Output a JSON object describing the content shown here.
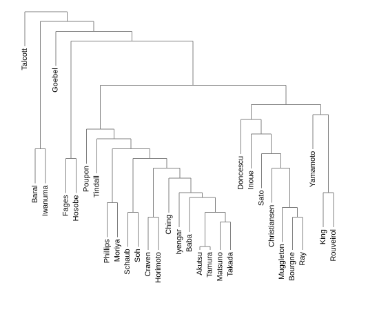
{
  "diagram": {
    "type": "dendrogram",
    "orientation": "top-down",
    "colors": {
      "link": "#7f7f7f",
      "label": "#000000",
      "background": "#ffffff"
    },
    "leaves": [
      "Talcott",
      "Baral",
      "Iwanuma",
      "Goebel",
      "Fages",
      "Hosobe",
      "Poupon",
      "Tindall",
      "Phillips",
      "Moriya",
      "Schaub",
      "Soh",
      "Craven",
      "Horimoto",
      "Ching",
      "Iyengar",
      "Baba",
      "Akutsu",
      "Tamura",
      "Matsuno",
      "Takada",
      "Doncescu",
      "Inoue",
      "Sato",
      "Christiansen",
      "Muggleton",
      "Bourgne",
      "Ray",
      "Yamamoto",
      "King",
      "Rouveirol"
    ],
    "merges": [
      [
        "Baral",
        "Iwanuma",
        0.2
      ],
      [
        "Fages",
        "Hosobe",
        0.18
      ],
      [
        "Phillips",
        "Moriya",
        0.09
      ],
      [
        "Schaub",
        "Soh",
        0.07
      ],
      [
        "Craven",
        "Horimoto",
        0.06
      ],
      [
        "Akutsu",
        "Tamura",
        0.0
      ],
      [
        "Matsuno",
        "Takada",
        0.05
      ],
      [
        "Bourgne",
        "Ray",
        0.06
      ],
      [
        "King",
        "Rouveirol",
        0.11
      ],
      [
        "m6",
        "m7",
        0.07
      ],
      [
        "Baba",
        "m10",
        0.1
      ],
      [
        "Iyengar",
        "m11",
        0.11
      ],
      [
        "Ching",
        "m12",
        0.14
      ],
      [
        "m5",
        "m13",
        0.16
      ],
      [
        "m4",
        "m14",
        0.18
      ],
      [
        "m3",
        "m15",
        0.2
      ],
      [
        "Tindall",
        "m16",
        0.22
      ],
      [
        "Poupon",
        "m17",
        0.24
      ],
      [
        "Muggleton",
        "m8",
        0.08
      ],
      [
        "Christiansen",
        "m19",
        0.16
      ],
      [
        "Sato",
        "m20",
        0.19
      ],
      [
        "Inoue",
        "m21",
        0.23
      ],
      [
        "Doncescu",
        "m22",
        0.26
      ],
      [
        "Yamamoto",
        "m9",
        0.27
      ],
      [
        "m23",
        "m24",
        0.29
      ],
      [
        "m18",
        "m25",
        0.33
      ],
      [
        "m2",
        "m26",
        0.42
      ],
      [
        "Goebel",
        "m27",
        0.44
      ],
      [
        "m1",
        "m28",
        0.46
      ],
      [
        "Talcott",
        "m29",
        0.48
      ]
    ]
  }
}
